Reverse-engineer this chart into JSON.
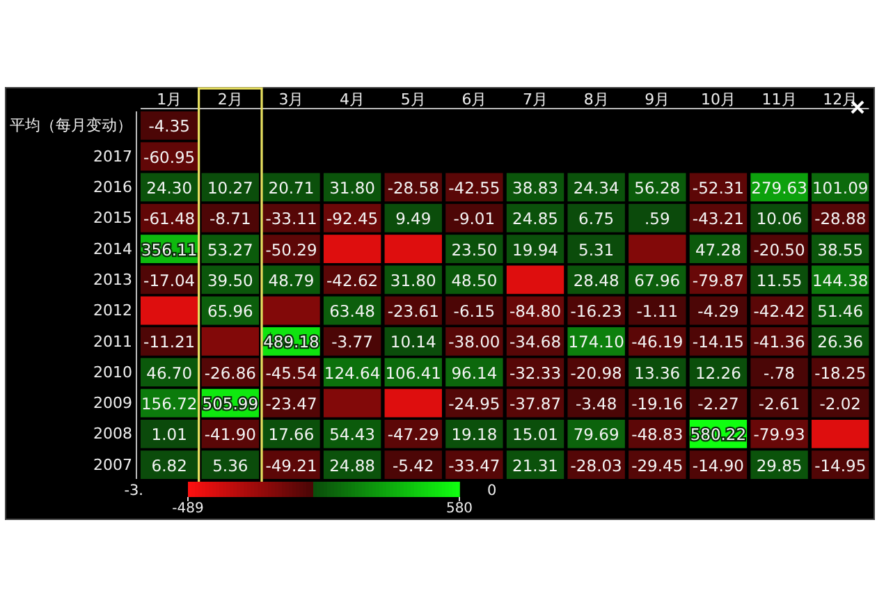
{
  "chart_data": {
    "type": "heatmap",
    "categories": [
      "1月",
      "2月",
      "3月",
      "4月",
      "5月",
      "6月",
      "7月",
      "8月",
      "9月",
      "10月",
      "11月",
      "12月"
    ],
    "y_categories": [
      "平均（每月变动）",
      "2017",
      "2016",
      "2015",
      "2014",
      "2013",
      "2012",
      "2011",
      "2010",
      "2009",
      "2008",
      "2007"
    ],
    "cells": [
      [
        -4.35,
        null,
        null,
        null,
        null,
        null,
        null,
        null,
        null,
        null,
        null,
        null
      ],
      [
        -60.95,
        null,
        null,
        null,
        null,
        null,
        null,
        null,
        null,
        null,
        null,
        null
      ],
      [
        24.3,
        10.27,
        20.71,
        31.8,
        -28.58,
        -42.55,
        38.83,
        24.34,
        56.28,
        -52.31,
        279.63,
        101.09
      ],
      [
        -61.48,
        -8.71,
        -33.11,
        -92.45,
        9.49,
        -9.01,
        24.85,
        6.75,
        0.59,
        -43.21,
        10.06,
        -28.88
      ],
      [
        356.11,
        53.27,
        -50.29,
        -400,
        -400,
        23.5,
        19.94,
        5.31,
        -150,
        47.28,
        -20.5,
        38.55
      ],
      [
        -17.04,
        39.5,
        48.79,
        -42.62,
        31.8,
        48.5,
        -400,
        28.48,
        67.96,
        -79.87,
        11.55,
        144.38
      ],
      [
        -400,
        65.96,
        -150,
        63.48,
        -23.61,
        -6.15,
        -84.8,
        -16.23,
        -1.11,
        -4.29,
        -42.42,
        51.46
      ],
      [
        -11.21,
        -150,
        489.18,
        -3.77,
        10.14,
        -38.0,
        -34.68,
        174.1,
        -46.19,
        -14.15,
        -41.36,
        26.36
      ],
      [
        46.7,
        -26.86,
        -45.54,
        124.64,
        106.41,
        96.14,
        -32.33,
        -20.98,
        13.36,
        12.26,
        -0.78,
        -18.25
      ],
      [
        156.72,
        505.99,
        -23.47,
        -150,
        -400,
        -24.95,
        -37.87,
        -3.48,
        -19.16,
        -2.27,
        -2.61,
        -2.02
      ],
      [
        1.01,
        -41.9,
        17.66,
        54.43,
        -47.29,
        19.18,
        15.01,
        79.69,
        -48.83,
        580.22,
        -79.93,
        -400
      ],
      [
        6.82,
        5.36,
        -49.21,
        24.88,
        -5.42,
        -33.47,
        21.31,
        -28.03,
        -29.45,
        -14.9,
        29.85,
        -14.95
      ]
    ],
    "cell_labels": [
      [
        "-4.35",
        null,
        null,
        null,
        null,
        null,
        null,
        null,
        null,
        null,
        null,
        null
      ],
      [
        "-60.95",
        null,
        null,
        null,
        null,
        null,
        null,
        null,
        null,
        null,
        null,
        null
      ],
      [
        "24.30",
        "10.27",
        "20.71",
        "31.80",
        "-28.58",
        "-42.55",
        "38.83",
        "24.34",
        "56.28",
        "-52.31",
        "279.63",
        "101.09"
      ],
      [
        "-61.48",
        "-8.71",
        "-33.11",
        "-92.45",
        "9.49",
        "-9.01",
        "24.85",
        "6.75",
        ".59",
        "-43.21",
        "10.06",
        "-28.88"
      ],
      [
        "356.11",
        "53.27",
        "-50.29",
        null,
        null,
        "23.50",
        "19.94",
        "5.31",
        null,
        "47.28",
        "-20.50",
        "38.55"
      ],
      [
        "-17.04",
        "39.50",
        "48.79",
        "-42.62",
        "31.80",
        "48.50",
        null,
        "28.48",
        "67.96",
        "-79.87",
        "11.55",
        "144.38"
      ],
      [
        null,
        "65.96",
        null,
        "63.48",
        "-23.61",
        "-6.15",
        "-84.80",
        "-16.23",
        "-1.11",
        "-4.29",
        "-42.42",
        "51.46"
      ],
      [
        "-11.21",
        null,
        "489.18",
        "-3.77",
        "10.14",
        "-38.00",
        "-34.68",
        "174.10",
        "-46.19",
        "-14.15",
        "-41.36",
        "26.36"
      ],
      [
        "46.70",
        "-26.86",
        "-45.54",
        "124.64",
        "106.41",
        "96.14",
        "-32.33",
        "-20.98",
        "13.36",
        "12.26",
        "-.78",
        "-18.25"
      ],
      [
        "156.72",
        "505.99",
        "-23.47",
        null,
        null,
        "-24.95",
        "-37.87",
        "-3.48",
        "-19.16",
        "-2.27",
        "-2.61",
        "-2.02"
      ],
      [
        "1.01",
        "-41.90",
        "17.66",
        "54.43",
        "-47.29",
        "19.18",
        "15.01",
        "79.69",
        "-48.83",
        "580.22",
        "-79.93",
        null
      ],
      [
        "6.82",
        "5.36",
        "-49.21",
        "24.88",
        "-5.42",
        "-33.47",
        "21.31",
        "-28.03",
        "-29.45",
        "-14.90",
        "29.85",
        "-14.95"
      ]
    ],
    "clim": [
      -489,
      580
    ],
    "cticks": [
      -489,
      580
    ],
    "annotations": [
      "-3.",
      "0"
    ]
  }
}
